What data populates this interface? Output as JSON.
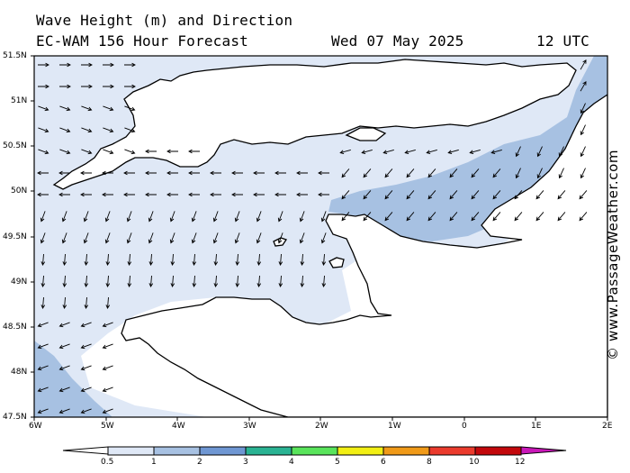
{
  "header": {
    "title": "Wave Height (m) and Direction",
    "model": "EC-WAM 156 Hour Forecast",
    "date": "Wed 07 May 2025",
    "time": "12 UTC"
  },
  "credit": "© www.PassageWeather.com",
  "axes": {
    "lat_labels": [
      "51.5N",
      "51N",
      "50.5N",
      "50N",
      "49.5N",
      "49N",
      "48.5N",
      "48N",
      "47.5N"
    ],
    "lon_labels": [
      "6W",
      "5W",
      "4W",
      "3W",
      "2W",
      "1W",
      "0",
      "1E",
      "2E"
    ]
  },
  "legend": {
    "labels": [
      "0.5",
      "1",
      "2",
      "3",
      "4",
      "5",
      "6",
      "8",
      "10",
      "12"
    ],
    "colors": [
      "#dfe8f6",
      "#a7c1e2",
      "#6f97d3",
      "#2ab393",
      "#59e45b",
      "#f2ef14",
      "#f09a18",
      "#eb3b2d",
      "#c3080c",
      "#c917b8"
    ]
  },
  "colors": {
    "sea_calm": "#ffffff",
    "wave_0_5_1": "#dfe8f6",
    "wave_1_2": "#a7c1e2",
    "land": "#ffffff",
    "coast": "#000000"
  }
}
